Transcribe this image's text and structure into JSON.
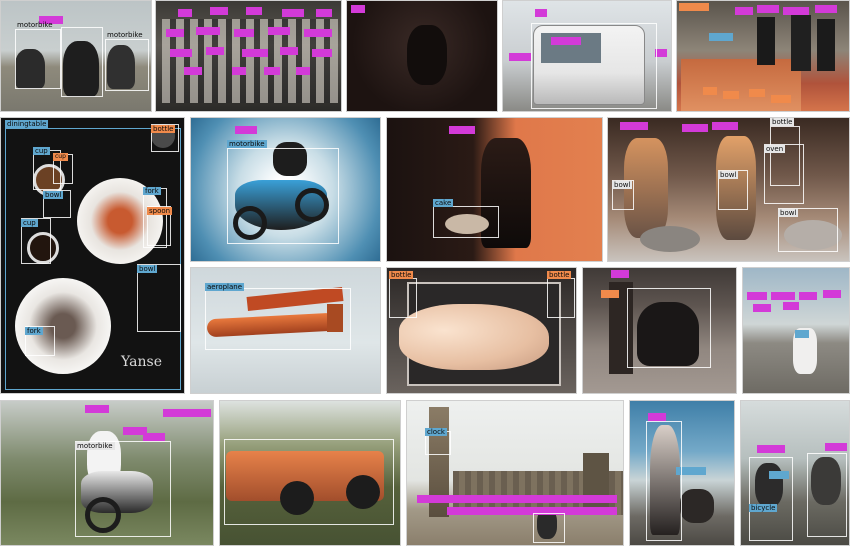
{
  "tiles": {
    "moto_group": {
      "labels": [
        "motorbike",
        "motorbike"
      ]
    },
    "dining": {
      "labels": [
        "diningtable",
        "bottle",
        "cup",
        "cup",
        "bowl",
        "fork",
        "spoon",
        "bowl",
        "fork",
        "cup"
      ],
      "watermark": "Yanse"
    },
    "motocross": {
      "labels": [
        "motorbike"
      ]
    },
    "kitchen_lady": {
      "labels": [
        "cake"
      ]
    },
    "kitchen_group": {
      "labels": [
        "bottle",
        "oven",
        "bowl",
        "bowl",
        "bowl"
      ]
    },
    "airplane": {
      "labels": [
        "aeroplane"
      ]
    },
    "cat": {
      "labels": [
        "bottle",
        "bottle"
      ]
    },
    "street_moto": {
      "labels": [
        "motorbike"
      ]
    },
    "bigben": {
      "labels": [
        "clock"
      ]
    },
    "cyclist": {
      "labels": [
        "bicycle"
      ]
    }
  }
}
